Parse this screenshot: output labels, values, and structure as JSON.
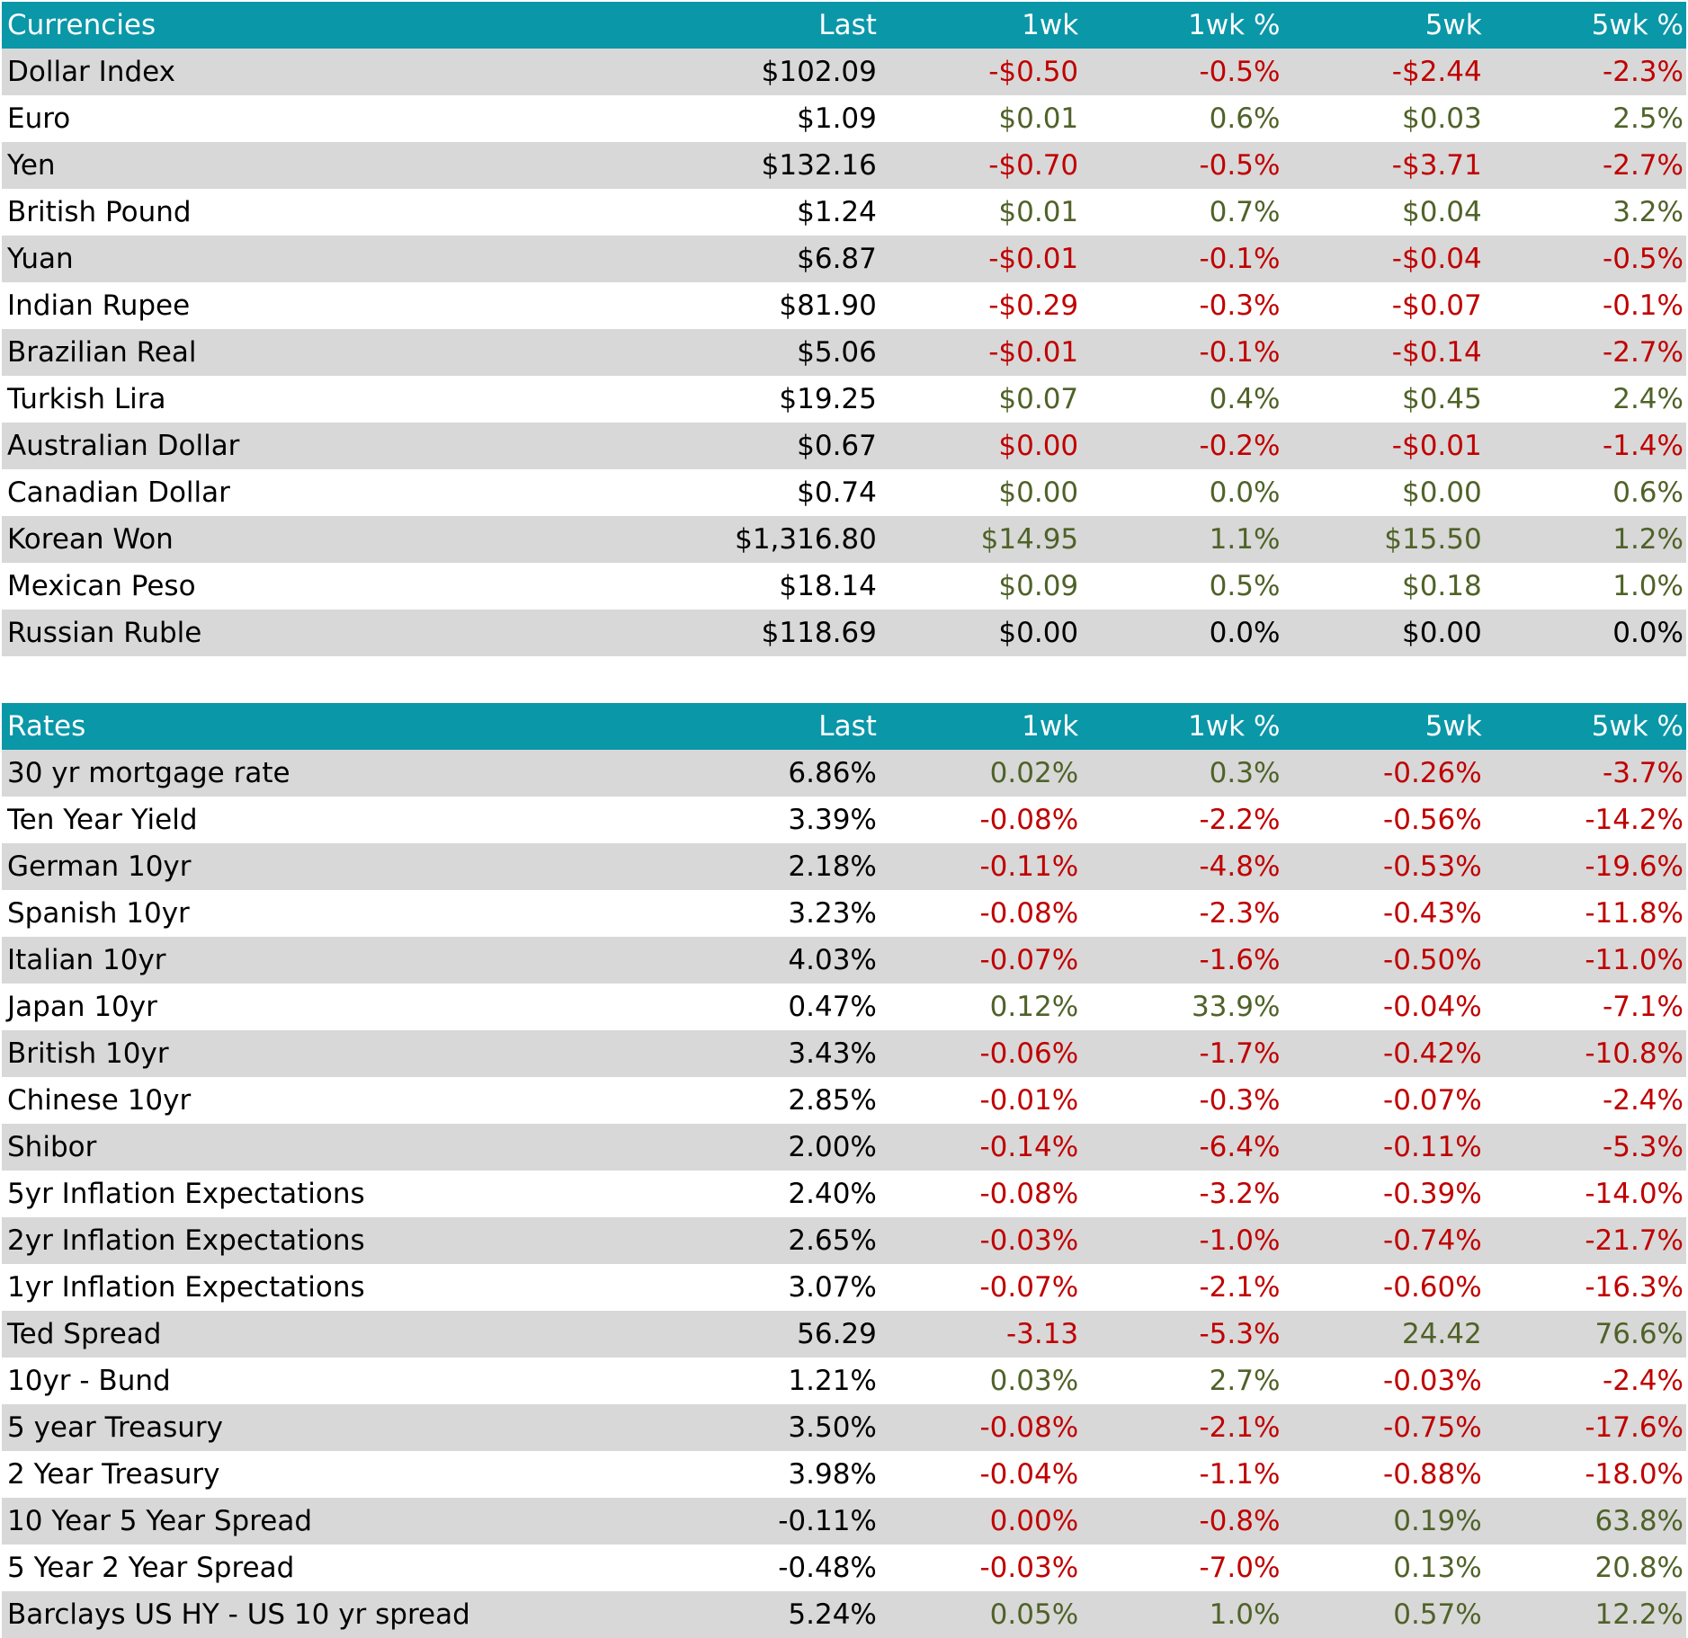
{
  "colors": {
    "header_bg": "#0a97a8",
    "shade_row": "#d8d8d8",
    "negative": "#c00000",
    "positive": "#4f6228"
  },
  "currencies": {
    "header": [
      "Currencies",
      "Last",
      "1wk",
      "1wk %",
      "5wk",
      "5wk %"
    ],
    "rows": [
      {
        "name": "Dollar Index",
        "last": "$102.09",
        "wk1": "-$0.50",
        "wk1p": "-0.5%",
        "wk5": "-$2.44",
        "wk5p": "-2.3%",
        "s": [
          "neu",
          "neg",
          "neg",
          "neg",
          "neg"
        ]
      },
      {
        "name": "Euro",
        "last": "$1.09",
        "wk1": "$0.01",
        "wk1p": "0.6%",
        "wk5": "$0.03",
        "wk5p": "2.5%",
        "s": [
          "neu",
          "pos",
          "pos",
          "pos",
          "pos"
        ]
      },
      {
        "name": "Yen",
        "last": "$132.16",
        "wk1": "-$0.70",
        "wk1p": "-0.5%",
        "wk5": "-$3.71",
        "wk5p": "-2.7%",
        "s": [
          "neu",
          "neg",
          "neg",
          "neg",
          "neg"
        ]
      },
      {
        "name": "British Pound",
        "last": "$1.24",
        "wk1": "$0.01",
        "wk1p": "0.7%",
        "wk5": "$0.04",
        "wk5p": "3.2%",
        "s": [
          "neu",
          "pos",
          "pos",
          "pos",
          "pos"
        ]
      },
      {
        "name": "Yuan",
        "last": "$6.87",
        "wk1": "-$0.01",
        "wk1p": "-0.1%",
        "wk5": "-$0.04",
        "wk5p": "-0.5%",
        "s": [
          "neu",
          "neg",
          "neg",
          "neg",
          "neg"
        ]
      },
      {
        "name": "Indian Rupee",
        "last": "$81.90",
        "wk1": "-$0.29",
        "wk1p": "-0.3%",
        "wk5": "-$0.07",
        "wk5p": "-0.1%",
        "s": [
          "neu",
          "neg",
          "neg",
          "neg",
          "neg"
        ]
      },
      {
        "name": "Brazilian Real",
        "last": "$5.06",
        "wk1": "-$0.01",
        "wk1p": "-0.1%",
        "wk5": "-$0.14",
        "wk5p": "-2.7%",
        "s": [
          "neu",
          "neg",
          "neg",
          "neg",
          "neg"
        ]
      },
      {
        "name": "Turkish Lira",
        "last": "$19.25",
        "wk1": "$0.07",
        "wk1p": "0.4%",
        "wk5": "$0.45",
        "wk5p": "2.4%",
        "s": [
          "neu",
          "pos",
          "pos",
          "pos",
          "pos"
        ]
      },
      {
        "name": "Australian Dollar",
        "last": "$0.67",
        "wk1": "$0.00",
        "wk1p": "-0.2%",
        "wk5": "-$0.01",
        "wk5p": "-1.4%",
        "s": [
          "neu",
          "neg",
          "neg",
          "neg",
          "neg"
        ]
      },
      {
        "name": "Canadian Dollar",
        "last": "$0.74",
        "wk1": "$0.00",
        "wk1p": "0.0%",
        "wk5": "$0.00",
        "wk5p": "0.6%",
        "s": [
          "neu",
          "pos",
          "pos",
          "pos",
          "pos"
        ]
      },
      {
        "name": "Korean Won",
        "last": "$1,316.80",
        "wk1": "$14.95",
        "wk1p": "1.1%",
        "wk5": "$15.50",
        "wk5p": "1.2%",
        "s": [
          "neu",
          "pos",
          "pos",
          "pos",
          "pos"
        ]
      },
      {
        "name": "Mexican Peso",
        "last": "$18.14",
        "wk1": "$0.09",
        "wk1p": "0.5%",
        "wk5": "$0.18",
        "wk5p": "1.0%",
        "s": [
          "neu",
          "pos",
          "pos",
          "pos",
          "pos"
        ]
      },
      {
        "name": "Russian Ruble",
        "last": "$118.69",
        "wk1": "$0.00",
        "wk1p": "0.0%",
        "wk5": "$0.00",
        "wk5p": "0.0%",
        "s": [
          "neu",
          "neu",
          "neu",
          "neu",
          "neu"
        ]
      }
    ]
  },
  "rates": {
    "header": [
      "Rates",
      "Last",
      "1wk",
      "1wk %",
      "5wk",
      "5wk %"
    ],
    "rows": [
      {
        "name": "30 yr mortgage rate",
        "last": "6.86%",
        "wk1": "0.02%",
        "wk1p": "0.3%",
        "wk5": "-0.26%",
        "wk5p": "-3.7%",
        "s": [
          "neu",
          "pos",
          "pos",
          "neg",
          "neg"
        ]
      },
      {
        "name": "Ten Year Yield",
        "last": "3.39%",
        "wk1": "-0.08%",
        "wk1p": "-2.2%",
        "wk5": "-0.56%",
        "wk5p": "-14.2%",
        "s": [
          "neu",
          "neg",
          "neg",
          "neg",
          "neg"
        ]
      },
      {
        "name": "German 10yr",
        "last": "2.18%",
        "wk1": "-0.11%",
        "wk1p": "-4.8%",
        "wk5": "-0.53%",
        "wk5p": "-19.6%",
        "s": [
          "neu",
          "neg",
          "neg",
          "neg",
          "neg"
        ]
      },
      {
        "name": "Spanish 10yr",
        "last": "3.23%",
        "wk1": "-0.08%",
        "wk1p": "-2.3%",
        "wk5": "-0.43%",
        "wk5p": "-11.8%",
        "s": [
          "neu",
          "neg",
          "neg",
          "neg",
          "neg"
        ]
      },
      {
        "name": "Italian 10yr",
        "last": "4.03%",
        "wk1": "-0.07%",
        "wk1p": "-1.6%",
        "wk5": "-0.50%",
        "wk5p": "-11.0%",
        "s": [
          "neu",
          "neg",
          "neg",
          "neg",
          "neg"
        ]
      },
      {
        "name": "Japan 10yr",
        "last": "0.47%",
        "wk1": "0.12%",
        "wk1p": "33.9%",
        "wk5": "-0.04%",
        "wk5p": "-7.1%",
        "s": [
          "neu",
          "pos",
          "pos",
          "neg",
          "neg"
        ]
      },
      {
        "name": "British 10yr",
        "last": "3.43%",
        "wk1": "-0.06%",
        "wk1p": "-1.7%",
        "wk5": "-0.42%",
        "wk5p": "-10.8%",
        "s": [
          "neu",
          "neg",
          "neg",
          "neg",
          "neg"
        ]
      },
      {
        "name": "Chinese 10yr",
        "last": "2.85%",
        "wk1": "-0.01%",
        "wk1p": "-0.3%",
        "wk5": "-0.07%",
        "wk5p": "-2.4%",
        "s": [
          "neu",
          "neg",
          "neg",
          "neg",
          "neg"
        ]
      },
      {
        "name": "Shibor",
        "last": "2.00%",
        "wk1": "-0.14%",
        "wk1p": "-6.4%",
        "wk5": "-0.11%",
        "wk5p": "-5.3%",
        "s": [
          "neu",
          "neg",
          "neg",
          "neg",
          "neg"
        ]
      },
      {
        "name": "5yr Inflation Expectations",
        "last": "2.40%",
        "wk1": "-0.08%",
        "wk1p": "-3.2%",
        "wk5": "-0.39%",
        "wk5p": "-14.0%",
        "s": [
          "neu",
          "neg",
          "neg",
          "neg",
          "neg"
        ]
      },
      {
        "name": "2yr Inflation Expectations",
        "last": "2.65%",
        "wk1": "-0.03%",
        "wk1p": "-1.0%",
        "wk5": "-0.74%",
        "wk5p": "-21.7%",
        "s": [
          "neu",
          "neg",
          "neg",
          "neg",
          "neg"
        ]
      },
      {
        "name": "1yr Inflation Expectations",
        "last": "3.07%",
        "wk1": "-0.07%",
        "wk1p": "-2.1%",
        "wk5": "-0.60%",
        "wk5p": "-16.3%",
        "s": [
          "neu",
          "neg",
          "neg",
          "neg",
          "neg"
        ]
      },
      {
        "name": "Ted Spread",
        "last": "56.29",
        "wk1": "-3.13",
        "wk1p": "-5.3%",
        "wk5": "24.42",
        "wk5p": "76.6%",
        "s": [
          "neu",
          "neg",
          "neg",
          "pos",
          "pos"
        ]
      },
      {
        "name": "10yr - Bund",
        "last": "1.21%",
        "wk1": "0.03%",
        "wk1p": "2.7%",
        "wk5": "-0.03%",
        "wk5p": "-2.4%",
        "s": [
          "neu",
          "pos",
          "pos",
          "neg",
          "neg"
        ]
      },
      {
        "name": "5 year Treasury",
        "last": "3.50%",
        "wk1": "-0.08%",
        "wk1p": "-2.1%",
        "wk5": "-0.75%",
        "wk5p": "-17.6%",
        "s": [
          "neu",
          "neg",
          "neg",
          "neg",
          "neg"
        ]
      },
      {
        "name": "2 Year Treasury",
        "last": "3.98%",
        "wk1": "-0.04%",
        "wk1p": "-1.1%",
        "wk5": "-0.88%",
        "wk5p": "-18.0%",
        "s": [
          "neu",
          "neg",
          "neg",
          "neg",
          "neg"
        ]
      },
      {
        "name": "10 Year 5 Year Spread",
        "last": "-0.11%",
        "wk1": "0.00%",
        "wk1p": "-0.8%",
        "wk5": "0.19%",
        "wk5p": "63.8%",
        "s": [
          "neu",
          "neg",
          "neg",
          "pos",
          "pos"
        ]
      },
      {
        "name": "5 Year 2 Year Spread",
        "last": "-0.48%",
        "wk1": "-0.03%",
        "wk1p": "-7.0%",
        "wk5": "0.13%",
        "wk5p": "20.8%",
        "s": [
          "neu",
          "neg",
          "neg",
          "pos",
          "pos"
        ]
      },
      {
        "name": "Barclays US HY - US 10 yr spread",
        "last": "5.24%",
        "wk1": "0.05%",
        "wk1p": "1.0%",
        "wk5": "0.57%",
        "wk5p": "12.2%",
        "s": [
          "neu",
          "pos",
          "pos",
          "pos",
          "pos"
        ]
      }
    ]
  }
}
